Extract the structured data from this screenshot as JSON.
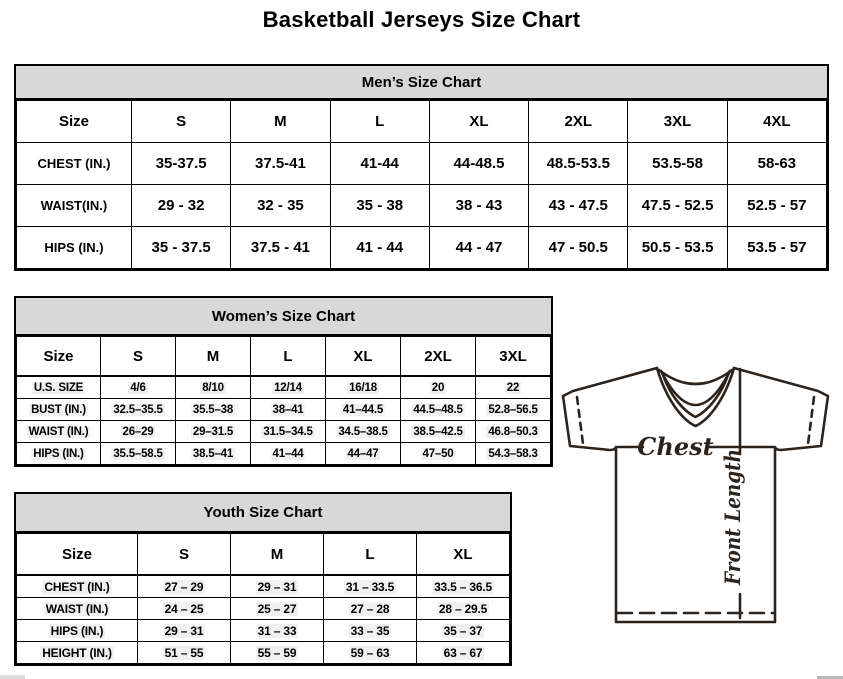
{
  "page": {
    "title": "Basketball Jerseys Size Chart"
  },
  "tables": {
    "men": {
      "title": "Men’s Size Chart",
      "columns": [
        "Size",
        "S",
        "M",
        "L",
        "XL",
        "2XL",
        "3XL",
        "4XL"
      ],
      "rows": [
        {
          "label": "CHEST (IN.)",
          "values": [
            "35-37.5",
            "37.5-41",
            "41-44",
            "44-48.5",
            "48.5-53.5",
            "53.5-58",
            "58-63"
          ]
        },
        {
          "label": "WAIST(IN.)",
          "values": [
            "29 - 32",
            "32 - 35",
            "35 - 38",
            "38 - 43",
            "43 - 47.5",
            "47.5 - 52.5",
            "52.5 - 57"
          ]
        },
        {
          "label": "HIPS (IN.)",
          "values": [
            "35 - 37.5",
            "37.5 - 41",
            "41 - 44",
            "44 - 47",
            "47 - 50.5",
            "50.5 - 53.5",
            "53.5 - 57"
          ]
        }
      ]
    },
    "women": {
      "title": "Women’s Size Chart",
      "columns": [
        "Size",
        "S",
        "M",
        "L",
        "XL",
        "2XL",
        "3XL"
      ],
      "rows": [
        {
          "label": "U.S. SIZE",
          "values": [
            "4/6",
            "8/10",
            "12/14",
            "16/18",
            "20",
            "22"
          ]
        },
        {
          "label": "BUST (IN.)",
          "values": [
            "32.5–35.5",
            "35.5–38",
            "38–41",
            "41–44.5",
            "44.5–48.5",
            "52.8–56.5"
          ]
        },
        {
          "label": "WAIST (IN.)",
          "values": [
            "26–29",
            "29–31.5",
            "31.5–34.5",
            "34.5–38.5",
            "38.5–42.5",
            "46.8–50.3"
          ]
        },
        {
          "label": "HIPS (IN.)",
          "values": [
            "35.5–58.5",
            "38.5–41",
            "41–44",
            "44–47",
            "47–50",
            "54.3–58.3"
          ]
        }
      ]
    },
    "youth": {
      "title": "Youth Size Chart",
      "columns": [
        "Size",
        "S",
        "M",
        "L",
        "XL"
      ],
      "rows": [
        {
          "label": "CHEST (IN.)",
          "values": [
            "27 – 29",
            "29 – 31",
            "31 – 33.5",
            "33.5 – 36.5"
          ]
        },
        {
          "label": "WAIST (IN.)",
          "values": [
            "24 – 25",
            "25 – 27",
            "27 – 28",
            "28 – 29.5"
          ]
        },
        {
          "label": "HIPS (IN.)",
          "values": [
            "29 – 31",
            "31 – 33",
            "33 – 35",
            "35 – 37"
          ]
        },
        {
          "label": "HEIGHT (IN.)",
          "values": [
            "51 – 55",
            "55 – 59",
            "59 – 63",
            "63 – 67"
          ]
        }
      ]
    }
  },
  "diagram": {
    "chest_label": "Chest",
    "front_length_label": "Front Length"
  },
  "colors": {
    "header_bg": "#d8d8d8",
    "table_border": "#000000",
    "diagram_stroke": "#2b241e",
    "row_highlight": "#f1f1f1"
  }
}
